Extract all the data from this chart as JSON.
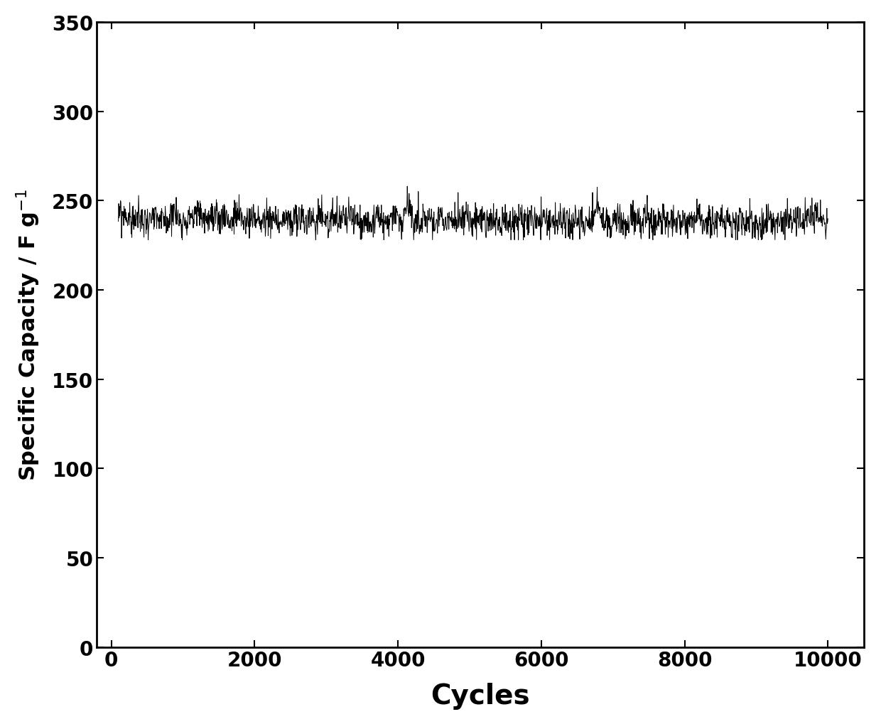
{
  "title": "",
  "xlabel": "Cycles",
  "ylabel": "Specific Capacity / F g$^{-1}$",
  "xlim": [
    -200,
    10500
  ],
  "ylim": [
    0,
    350
  ],
  "xticks": [
    0,
    2000,
    4000,
    6000,
    8000,
    10000
  ],
  "yticks": [
    0,
    50,
    100,
    150,
    200,
    250,
    300,
    350
  ],
  "n_points": 2000,
  "mean_value": 239,
  "noise_amplitude": 4.5,
  "line_color": "#000000",
  "line_width": 0.7,
  "background_color": "#ffffff",
  "xlabel_fontsize": 28,
  "ylabel_fontsize": 22,
  "tick_fontsize": 20,
  "seed": 99
}
